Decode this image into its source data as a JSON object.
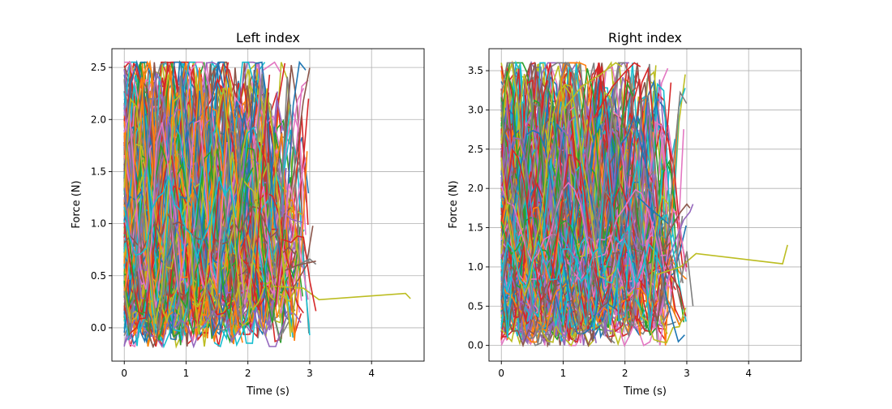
{
  "chart_data": [
    {
      "type": "line",
      "title": "Left index",
      "xlabel": "Time (s)",
      "ylabel": "Force (N)",
      "xlim": [
        -0.2,
        4.85
      ],
      "ylim": [
        -0.32,
        2.68
      ],
      "xticks": [
        0,
        1,
        2,
        3,
        4
      ],
      "yticks": [
        0.0,
        0.5,
        1.0,
        1.5,
        2.0,
        2.5
      ],
      "xtick_labels": [
        "0",
        "1",
        "2",
        "3",
        "4"
      ],
      "ytick_labels": [
        "0.0",
        "0.5",
        "1.0",
        "1.5",
        "2.0",
        "2.5"
      ],
      "grid": true,
      "dense_traces": {
        "count": 320,
        "t_range": [
          0.0,
          3.1
        ],
        "force_range": [
          -0.18,
          2.55
        ]
      },
      "series": [
        {
          "color": "#bcbd22",
          "x": [
            2.4,
            2.9,
            3.15,
            4.55,
            4.63
          ],
          "y": [
            0.4,
            0.38,
            0.27,
            0.33,
            0.28
          ]
        },
        {
          "color": "#d62728",
          "x": [
            2.45,
            2.55,
            2.7,
            2.8,
            2.9,
            3.0,
            3.1
          ],
          "y": [
            0.2,
            0.85,
            0.82,
            0.88,
            0.87,
            0.45,
            0.16
          ]
        },
        {
          "color": "#8c564b",
          "x": [
            2.7,
            2.85,
            2.95,
            3.0,
            3.05
          ],
          "y": [
            0.35,
            0.5,
            0.6,
            0.8,
            0.98
          ]
        },
        {
          "color": "#7f7f7f",
          "x": [
            2.6,
            2.8,
            3.0,
            3.1
          ],
          "y": [
            0.55,
            0.6,
            0.66,
            0.61
          ]
        },
        {
          "color": "#d62728",
          "x": [
            2.1,
            2.2,
            2.3,
            2.35
          ],
          "y": [
            0.3,
            1.2,
            2.1,
            2.43
          ]
        },
        {
          "color": "#8c564b",
          "x": [
            2.6,
            2.8,
            3.1
          ],
          "y": [
            0.55,
            0.6,
            0.64
          ]
        }
      ]
    },
    {
      "type": "line",
      "title": "Right index",
      "xlabel": "Time (s)",
      "ylabel": "Force (N)",
      "xlim": [
        -0.2,
        4.85
      ],
      "ylim": [
        -0.2,
        3.78
      ],
      "xticks": [
        0,
        1,
        2,
        3,
        4
      ],
      "yticks": [
        0.0,
        0.5,
        1.0,
        1.5,
        2.0,
        2.5,
        3.0,
        3.5
      ],
      "xtick_labels": [
        "0",
        "1",
        "2",
        "3",
        "4"
      ],
      "ytick_labels": [
        "0.0",
        "0.5",
        "1.0",
        "1.5",
        "2.0",
        "2.5",
        "3.0",
        "3.5"
      ],
      "grid": true,
      "dense_traces": {
        "count": 320,
        "t_range": [
          0.0,
          3.1
        ],
        "force_range": [
          0.0,
          3.6
        ]
      },
      "series": [
        {
          "color": "#bcbd22",
          "x": [
            2.5,
            2.9,
            3.15,
            4.55,
            4.63
          ],
          "y": [
            0.9,
            1.0,
            1.17,
            1.04,
            1.28
          ]
        },
        {
          "color": "#d62728",
          "x": [
            1.5,
            1.8,
            2.0,
            2.15,
            2.25
          ],
          "y": [
            2.9,
            3.3,
            3.48,
            3.6,
            3.55
          ]
        },
        {
          "color": "#bcbd22",
          "x": [
            1.0,
            1.3,
            1.6,
            1.85,
            1.95
          ],
          "y": [
            3.0,
            3.3,
            3.45,
            3.6,
            3.55
          ]
        },
        {
          "color": "#8c564b",
          "x": [
            2.6,
            2.75,
            2.9,
            3.0,
            3.05
          ],
          "y": [
            1.2,
            1.5,
            1.7,
            1.8,
            1.75
          ]
        },
        {
          "color": "#9467bd",
          "x": [
            2.7,
            2.85,
            2.95,
            3.05,
            3.1
          ],
          "y": [
            1.1,
            1.4,
            1.6,
            1.7,
            1.8
          ]
        },
        {
          "color": "#bcbd22",
          "x": [
            2.4,
            2.5,
            2.6,
            2.7
          ],
          "y": [
            0.6,
            1.5,
            1.9,
            1.8
          ]
        },
        {
          "color": "#7f7f7f",
          "x": [
            2.9,
            3.0,
            3.1
          ],
          "y": [
            0.8,
            1.2,
            0.5
          ]
        },
        {
          "color": "#1f77b4",
          "x": [
            2.2,
            2.4,
            2.7
          ],
          "y": [
            1.9,
            1.75,
            1.55
          ]
        }
      ]
    }
  ]
}
